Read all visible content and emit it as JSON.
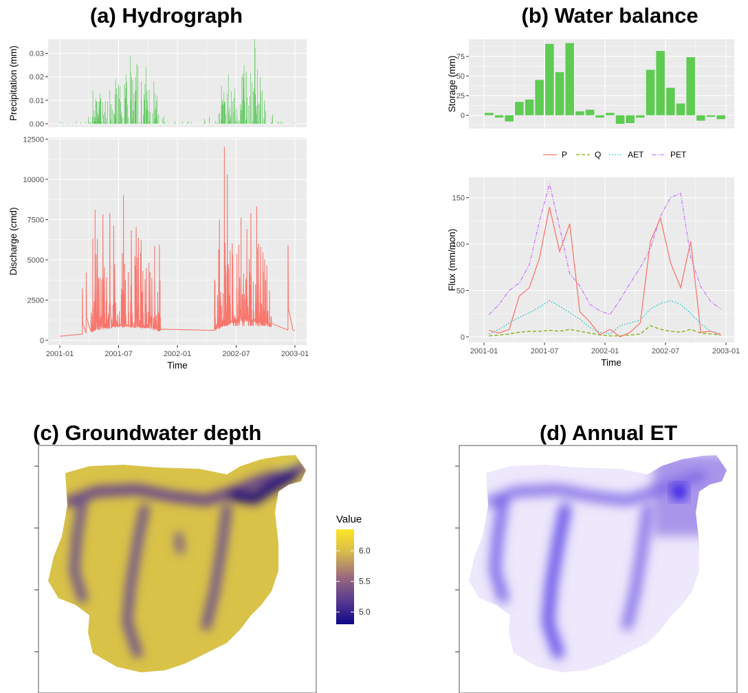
{
  "panels": {
    "a": {
      "title": "(a) Hydrograph",
      "precip": {
        "ylabel": "Precipitation (mm)",
        "yticks": [
          0.0,
          0.01,
          0.02,
          0.03
        ],
        "ytick_labels": [
          "0.00",
          "0.01",
          "0.02",
          "0.03"
        ],
        "ylim": [
          0,
          0.036
        ]
      },
      "discharge": {
        "ylabel": "Discharge (cmd)",
        "yticks": [
          0,
          2500,
          5000,
          7500,
          10000,
          12500
        ],
        "ytick_labels": [
          "0",
          "2500",
          "5000",
          "7500",
          "10000",
          "12500"
        ],
        "ylim": [
          -300,
          12600
        ]
      },
      "xlabel": "Time",
      "xtick_labels": [
        "2001-01",
        "2001-07",
        "2002-01",
        "2002-07",
        "2003-01"
      ],
      "xlim_month": [
        0,
        24
      ]
    },
    "b": {
      "title": "(b) Water balance",
      "storage": {
        "ylabel": "Storage (mm)",
        "yticks": [
          0,
          25,
          50,
          75
        ],
        "ytick_labels": [
          "0",
          "25",
          "50",
          "75"
        ],
        "ylim": [
          -17,
          97
        ]
      },
      "flux": {
        "ylabel": "Flux (mm/mon)",
        "yticks": [
          0,
          50,
          100,
          150
        ],
        "ytick_labels": [
          "0",
          "50",
          "100",
          "150"
        ],
        "ylim": [
          -6,
          172
        ]
      },
      "xlabel": "Time",
      "xtick_labels": [
        "2001-01",
        "2001-07",
        "2002-01",
        "2002-07",
        "2003-01"
      ],
      "legend": [
        "P",
        "Q",
        "AET",
        "PET"
      ]
    },
    "c": {
      "title": "(c) Groundwater depth",
      "colorbar": {
        "title": "Value",
        "tick_labels": [
          "6.0",
          "5.5",
          "5.0"
        ],
        "ticks": [
          6.0,
          5.5,
          5.0
        ],
        "range": [
          4.8,
          6.35
        ]
      }
    },
    "d": {
      "title": "(d) Annual ET"
    }
  },
  "colors": {
    "panel_bg": "#ebebeb",
    "grid": "#ffffff",
    "precip": "#5bc85b",
    "discharge": "#f8766d",
    "storage_bar": "#5ecb52",
    "P": "#f8766d",
    "Q": "#7cae00",
    "AET": "#00bfc4",
    "PET": "#c77cff"
  },
  "chart_data": [
    {
      "type": "bar",
      "panel": "(a) Hydrograph - precipitation",
      "ylabel": "Precipitation (mm)",
      "xlabel": "",
      "ylim": [
        0,
        0.036
      ],
      "peaks_by_month": {
        "x_month": [
          0,
          1,
          2,
          3,
          4,
          5,
          6,
          7,
          8,
          9,
          10,
          11,
          12,
          13,
          14,
          15,
          16,
          17,
          18,
          19,
          20,
          21,
          22,
          23
        ],
        "values": [
          0.001,
          0.001,
          0.003,
          0.014,
          0.013,
          0.019,
          0.021,
          0.029,
          0.024,
          0.018,
          0.004,
          0.001,
          0.001,
          0.001,
          0.002,
          0.003,
          0.016,
          0.021,
          0.025,
          0.036,
          0.023,
          0.004,
          0.001,
          0.0005
        ]
      }
    },
    {
      "type": "line",
      "panel": "(a) Hydrograph - discharge",
      "ylabel": "Discharge (cmd)",
      "xlabel": "Time",
      "ylim": [
        -300,
        12600
      ],
      "baseflow": {
        "x_month": [
          0,
          1,
          2,
          3,
          4,
          5,
          6,
          7,
          8,
          9,
          10,
          11,
          12,
          13,
          14,
          15,
          16,
          17,
          18,
          19,
          20,
          21,
          22,
          23,
          24
        ],
        "values": [
          250,
          260,
          300,
          500,
          700,
          800,
          900,
          900,
          850,
          800,
          650,
          500,
          420,
          380,
          400,
          480,
          700,
          1000,
          1200,
          1300,
          1200,
          1000,
          850,
          700,
          600
        ]
      },
      "peaks": {
        "x_month": [
          2.3,
          2.7,
          3.6,
          4.4,
          5.1,
          5.5,
          6.5,
          7.3,
          7.8,
          8.3,
          9.1,
          10.0,
          16.3,
          16.8,
          17.1,
          17.6,
          18.5,
          19.1,
          19.5,
          20.1,
          20.5,
          23.3
        ],
        "values": [
          3200,
          4200,
          8100,
          7800,
          7900,
          7100,
          9000,
          6800,
          7000,
          6200,
          4800,
          2000,
          7500,
          12000,
          10300,
          6000,
          7600,
          6900,
          7900,
          8300,
          5800,
          5900
        ]
      }
    },
    {
      "type": "bar",
      "panel": "(b) Water balance - storage",
      "ylabel": "Storage (mm)",
      "xlabel": "",
      "x_month": [
        1,
        2,
        3,
        4,
        5,
        6,
        7,
        8,
        9,
        10,
        11,
        12,
        13,
        14,
        15,
        16,
        17,
        18,
        19,
        20,
        21,
        22,
        23,
        24
      ],
      "values": [
        3,
        -3,
        -8,
        17,
        20,
        45,
        91,
        55,
        92,
        5,
        7,
        -3,
        3,
        -11,
        -10,
        -3,
        58,
        82,
        35,
        15,
        74,
        -7,
        -2,
        -5
      ]
    },
    {
      "type": "line",
      "panel": "(b) Water balance - flux",
      "ylabel": "Flux (mm/mon)",
      "xlabel": "Time",
      "x_month": [
        1,
        2,
        3,
        4,
        5,
        6,
        7,
        8,
        9,
        10,
        11,
        12,
        13,
        14,
        15,
        16,
        17,
        18,
        19,
        20,
        21,
        22,
        23,
        24
      ],
      "series": [
        {
          "name": "P",
          "values": [
            7,
            4,
            8,
            44,
            53,
            85,
            140,
            92,
            122,
            27,
            16,
            2,
            8,
            0,
            5,
            15,
            103,
            128,
            80,
            53,
            103,
            5,
            6,
            2
          ]
        },
        {
          "name": "Q",
          "values": [
            1,
            2,
            3,
            5,
            6,
            6,
            7,
            6,
            8,
            6,
            4,
            2,
            1,
            1,
            2,
            3,
            12,
            8,
            6,
            5,
            8,
            4,
            3,
            2
          ]
        },
        {
          "name": "AET",
          "values": [
            3,
            8,
            15,
            21,
            26,
            32,
            39,
            33,
            26,
            19,
            10,
            5,
            3,
            12,
            15,
            18,
            30,
            36,
            39,
            35,
            25,
            14,
            6,
            3
          ]
        },
        {
          "name": "PET",
          "values": [
            24,
            35,
            50,
            58,
            78,
            125,
            165,
            118,
            68,
            55,
            35,
            28,
            24,
            40,
            58,
            75,
            95,
            130,
            150,
            155,
            86,
            54,
            38,
            30
          ]
        }
      ]
    },
    {
      "type": "heatmap",
      "panel": "(c) Groundwater depth",
      "legend_title": "Value",
      "colorbar_ticks": [
        5.0,
        5.5,
        6.0
      ],
      "value_range": [
        4.8,
        6.35
      ]
    },
    {
      "type": "heatmap",
      "panel": "(d) Annual ET"
    }
  ]
}
